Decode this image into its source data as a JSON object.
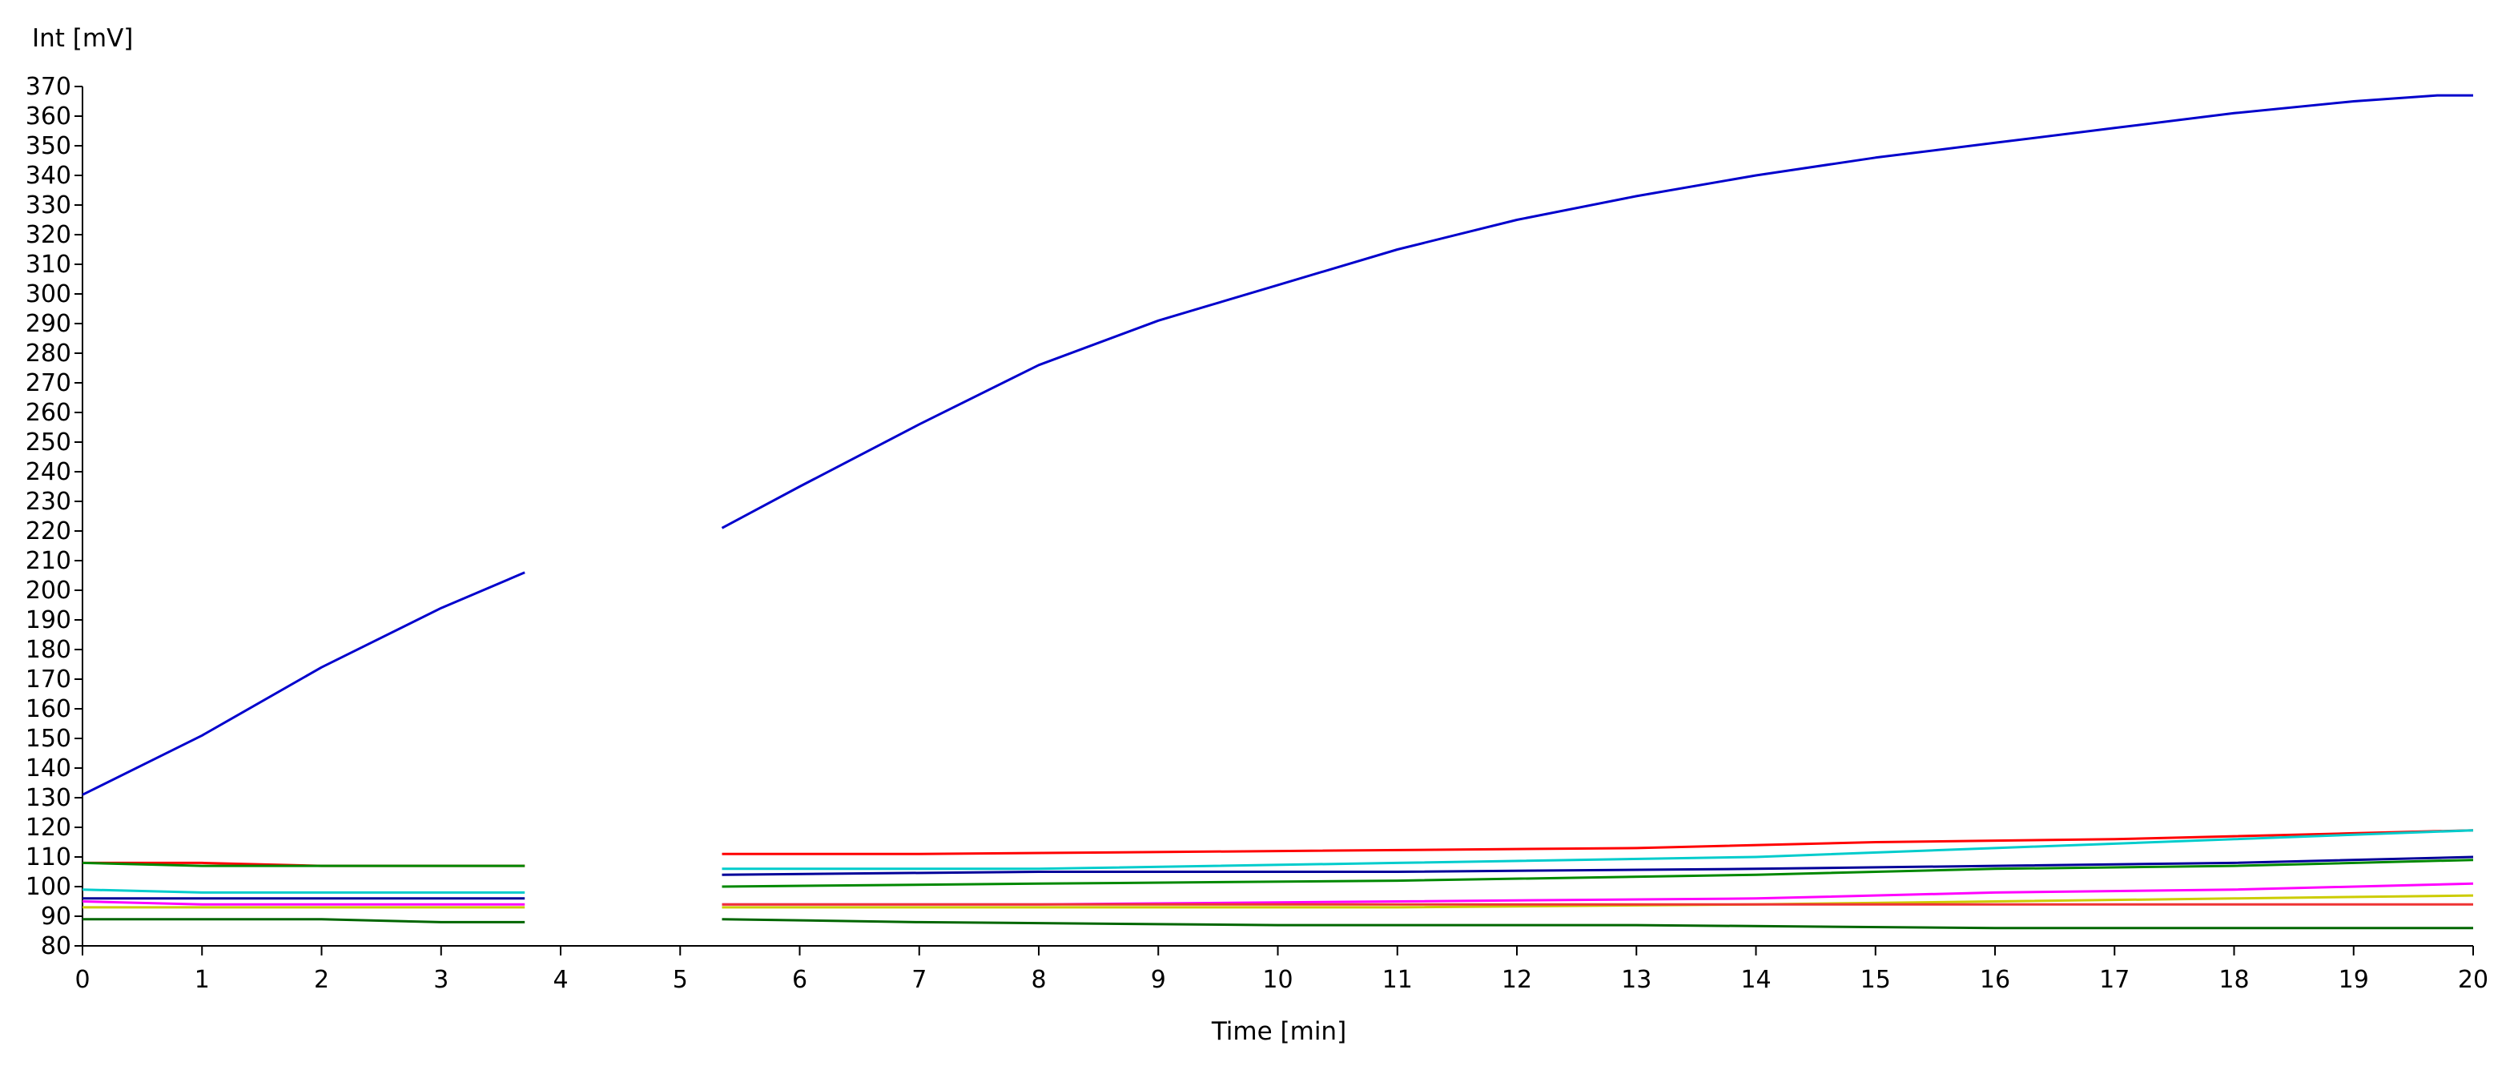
{
  "chart_data": {
    "type": "line",
    "ylabel": "Int [mV]",
    "xlabel": "Time [min]",
    "xlim": [
      0,
      20
    ],
    "ylim": [
      80,
      370
    ],
    "x_ticks": [
      0,
      1,
      2,
      3,
      4,
      5,
      6,
      7,
      8,
      9,
      10,
      11,
      12,
      13,
      14,
      15,
      16,
      17,
      18,
      19,
      20
    ],
    "y_ticks": [
      80,
      90,
      100,
      110,
      120,
      130,
      140,
      150,
      160,
      170,
      180,
      190,
      200,
      210,
      220,
      230,
      240,
      250,
      260,
      270,
      280,
      290,
      300,
      310,
      320,
      330,
      340,
      350,
      360,
      370
    ],
    "grid": false,
    "legend": "none",
    "series": [
      {
        "color": "#0000cc",
        "segments": [
          {
            "x": [
              0,
              1,
              2,
              3,
              3.7
            ],
            "y": [
              131,
              151,
              174,
              194,
              206
            ]
          },
          {
            "x": [
              5.35,
              6,
              7,
              8,
              9,
              10,
              11,
              12,
              13,
              14,
              15,
              16,
              17,
              18,
              19,
              19.7,
              20
            ],
            "y": [
              221,
              235,
              256,
              276,
              291,
              303,
              315,
              325,
              333,
              340,
              346,
              351,
              356,
              361,
              365,
              367,
              367
            ]
          }
        ]
      },
      {
        "color": "#ff0000",
        "segments": [
          {
            "x": [
              0,
              1,
              2,
              3,
              3.7
            ],
            "y": [
              108,
              108,
              107,
              107,
              107
            ]
          },
          {
            "x": [
              5.35,
              7,
              10,
              13,
              15,
              17,
              18,
              19,
              20
            ],
            "y": [
              111,
              111,
              112,
              113,
              115,
              116,
              117,
              118,
              119
            ]
          }
        ]
      },
      {
        "color": "#00cccc",
        "segments": [
          {
            "x": [
              0,
              1,
              2,
              3,
              3.7
            ],
            "y": [
              99,
              98,
              98,
              98,
              98
            ]
          },
          {
            "x": [
              5.35,
              8,
              11,
              14,
              16,
              18,
              20
            ],
            "y": [
              106,
              106,
              108,
              110,
              113,
              116,
              119
            ]
          }
        ]
      },
      {
        "color": "#008800",
        "segments": [
          {
            "x": [
              0,
              1,
              2,
              3,
              3.7
            ],
            "y": [
              108,
              107,
              107,
              107,
              107
            ]
          },
          {
            "x": [
              5.35,
              8,
              11,
              14,
              16,
              18,
              20
            ],
            "y": [
              100,
              101,
              102,
              104,
              106,
              107,
              109
            ]
          }
        ]
      },
      {
        "color": "#000099",
        "segments": [
          {
            "x": [
              0,
              1,
              2,
              3,
              3.7
            ],
            "y": [
              96,
              96,
              96,
              96,
              96
            ]
          },
          {
            "x": [
              5.35,
              8,
              11,
              14,
              16,
              18,
              20
            ],
            "y": [
              104,
              105,
              105,
              106,
              107,
              108,
              110
            ]
          }
        ]
      },
      {
        "color": "#ff00ff",
        "segments": [
          {
            "x": [
              0,
              1,
              2,
              3,
              3.7
            ],
            "y": [
              95,
              94,
              94,
              94,
              94
            ]
          },
          {
            "x": [
              5.35,
              8,
              11,
              14,
              16,
              18,
              20
            ],
            "y": [
              94,
              94,
              95,
              96,
              98,
              99,
              101
            ]
          }
        ]
      },
      {
        "color": "#cccc00",
        "segments": [
          {
            "x": [
              0,
              1,
              2,
              3,
              3.7
            ],
            "y": [
              93,
              93,
              93,
              93,
              93
            ]
          },
          {
            "x": [
              5.35,
              8,
              11,
              14,
              16,
              18,
              20
            ],
            "y": [
              93,
              93,
              93,
              94,
              95,
              96,
              97
            ]
          }
        ]
      },
      {
        "color": "#ee3333",
        "segments": [
          {
            "x": [
              5.35,
              8,
              11,
              14,
              17,
              20
            ],
            "y": [
              94,
              94,
              94,
              94,
              94,
              94
            ]
          }
        ]
      },
      {
        "color": "#006600",
        "segments": [
          {
            "x": [
              0,
              1,
              2,
              3,
              3.7
            ],
            "y": [
              89,
              89,
              89,
              88,
              88
            ]
          },
          {
            "x": [
              5.35,
              7,
              10,
              13,
              16,
              20
            ],
            "y": [
              89,
              88,
              87,
              87,
              86,
              86
            ]
          }
        ]
      }
    ]
  }
}
